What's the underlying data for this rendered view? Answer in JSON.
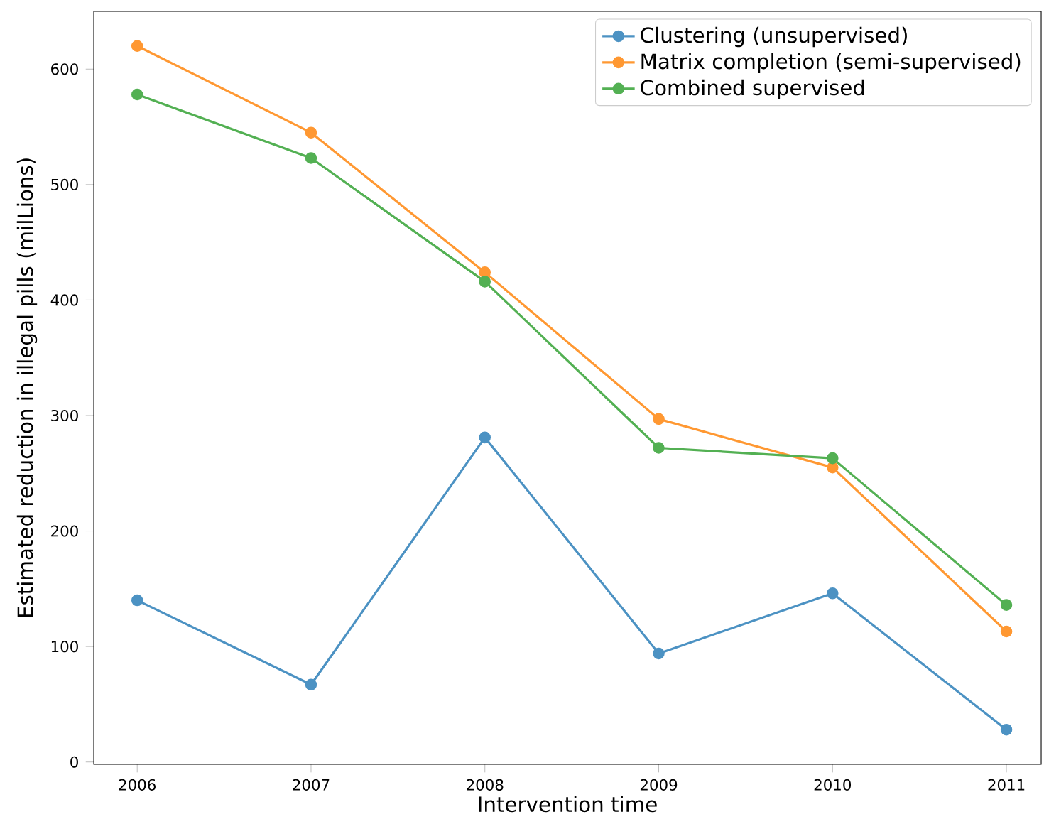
{
  "chart_data": {
    "type": "line",
    "xlabel": "Intervention time",
    "ylabel": "Estimated reduction in illegal pills (milLions)",
    "x": [
      2006,
      2007,
      2008,
      2009,
      2010,
      2011
    ],
    "series": [
      {
        "name": "Clustering (unsupervised)",
        "color": "#4c92c3",
        "values": [
          140,
          67,
          281,
          94,
          146,
          28
        ]
      },
      {
        "name": "Matrix completion (semi-supervised)",
        "color": "#ff9832",
        "values": [
          620,
          545,
          424,
          297,
          255,
          113
        ]
      },
      {
        "name": "Combined supervised",
        "color": "#53b053",
        "values": [
          578,
          523,
          416,
          272,
          263,
          136
        ]
      }
    ],
    "xlim": [
      2005.75,
      2011.2
    ],
    "ylim": [
      -2,
      650
    ],
    "xticks": [
      2006,
      2007,
      2008,
      2009,
      2010,
      2011
    ],
    "yticks": [
      0,
      100,
      200,
      300,
      400,
      500,
      600
    ],
    "legend": "top right",
    "marker": "circle",
    "line_style": "solid",
    "grid": false
  }
}
